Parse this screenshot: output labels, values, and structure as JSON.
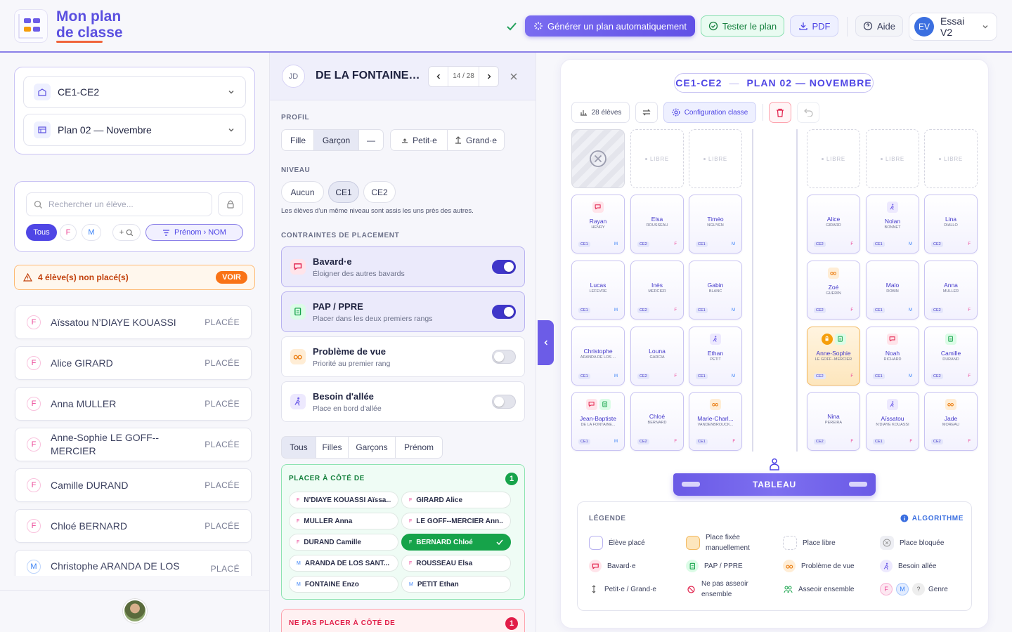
{
  "header": {
    "logo_line1": "Mon plan",
    "logo_line2": "de classe",
    "generate": "Générer un plan automatiquement",
    "test": "Tester le plan",
    "pdf": "PDF",
    "help": "Aide",
    "user_initials": "EV",
    "user_name": "Essai V2"
  },
  "sidebar": {
    "class_select": "CE1-CE2",
    "plan_select": "Plan 02 — Novembre",
    "search_placeholder": "Rechercher un élève...",
    "filters": [
      {
        "label": "Tous",
        "active": true
      },
      {
        "label": "F"
      },
      {
        "label": "M"
      },
      {
        "label": "+"
      }
    ],
    "sort": "Prénom › NOM",
    "alert": "4 élève(s) non placé(s)",
    "alert_action": "VOIR",
    "students": [
      {
        "gender": "F",
        "name": "Aïssatou N’DIAYE KOUASSI",
        "status": "PLACÉE"
      },
      {
        "gender": "F",
        "name": "Alice GIRARD",
        "status": "PLACÉE"
      },
      {
        "gender": "F",
        "name": "Anna MULLER",
        "status": "PLACÉE"
      },
      {
        "gender": "F",
        "name": "Anne-Sophie LE GOFF--MERCIER",
        "status": "PLACÉE"
      },
      {
        "gender": "F",
        "name": "Camille DURAND",
        "status": "PLACÉE"
      },
      {
        "gender": "F",
        "name": "Chloé BERNARD",
        "status": "PLACÉE"
      },
      {
        "gender": "M",
        "name": "Christophe ARANDA DE LOS SANTOS",
        "status": "PLACÉ"
      }
    ]
  },
  "panel": {
    "initials": "JD",
    "name": "DE LA FONTAINE-BI",
    "position": "14 / 28",
    "profile_label": "PROFIL",
    "gender_options": [
      {
        "label": "Fille"
      },
      {
        "label": "Garçon",
        "active": true
      },
      {
        "label": "—"
      }
    ],
    "size_options": [
      {
        "label": "Petit·e"
      },
      {
        "label": "Grand·e"
      }
    ],
    "level_label": "NIVEAU",
    "levels": [
      {
        "label": "Aucun"
      },
      {
        "label": "CE1",
        "active": true
      },
      {
        "label": "CE2"
      }
    ],
    "level_note": "Les élèves d'un même niveau sont assis les uns près des autres.",
    "constraints_label": "CONTRAINTES DE PLACEMENT",
    "constraints": [
      {
        "icon": "bavard",
        "title": "Bavard·e",
        "desc": "Éloigner des autres bavards",
        "on": true
      },
      {
        "icon": "pap",
        "title": "PAP / PPRE",
        "desc": "Placer dans les deux premiers rangs",
        "on": true
      },
      {
        "icon": "vue",
        "title": "Problème de vue",
        "desc": "Priorité au premier rang",
        "on": false
      },
      {
        "icon": "allee",
        "title": "Besoin d'allée",
        "desc": "Place en bord d'allée",
        "on": false
      }
    ],
    "tabs": [
      {
        "label": "Tous",
        "active": true
      },
      {
        "label": "Filles"
      },
      {
        "label": "Garçons"
      },
      {
        "label": "Prénom"
      }
    ],
    "near_label": "PLACER À CÔTÉ DE",
    "near_count": 1,
    "near": [
      {
        "gender": "F",
        "name": "N’DIAYE KOUASSI Aïssa..."
      },
      {
        "gender": "F",
        "name": "GIRARD Alice"
      },
      {
        "gender": "F",
        "name": "MULLER Anna"
      },
      {
        "gender": "F",
        "name": "LE GOFF--MERCIER Ann..."
      },
      {
        "gender": "F",
        "name": "DURAND Camille"
      },
      {
        "gender": "F",
        "name": "BERNARD Chloé",
        "selected": true
      },
      {
        "gender": "M",
        "name": "ARANDA DE LOS SANT..."
      },
      {
        "gender": "F",
        "name": "ROUSSEAU Elsa"
      },
      {
        "gender": "M",
        "name": "FONTAINE Enzo"
      },
      {
        "gender": "M",
        "name": "PETIT Ethan"
      }
    ],
    "not_near_label": "NE PAS PLACER À CÔTÉ DE",
    "not_near_count": 1
  },
  "classroom": {
    "title": "CE1-CE2",
    "separator": "—",
    "subtitle": "PLAN 02 — NOVEMBRE",
    "count": "28 élèves",
    "config": "Configuration classe",
    "free_label": "LIBRE",
    "board": "TABLEAU",
    "left": [
      [
        {
          "state": "blocked"
        },
        {
          "state": "free"
        },
        {
          "state": "free"
        }
      ],
      [
        {
          "first": "Rayan",
          "last": "HENRY",
          "level": "CE1",
          "gender": "M",
          "icons": [
            "bavard"
          ]
        },
        {
          "first": "Elsa",
          "last": "ROUSSEAU",
          "level": "CE2",
          "gender": "F"
        },
        {
          "first": "Timéo",
          "last": "NGUYEN",
          "level": "CE1",
          "gender": "M"
        }
      ],
      [
        {
          "first": "Lucas",
          "last": "LEFEVRE",
          "level": "CE1",
          "gender": "M"
        },
        {
          "first": "Inès",
          "last": "MERCIER",
          "level": "CE2",
          "gender": "F"
        },
        {
          "first": "Gabin",
          "last": "BLANC",
          "level": "CE1",
          "gender": "M"
        }
      ],
      [
        {
          "first": "Christophe",
          "last": "ARANDA DE LOS ...",
          "level": "CE1",
          "gender": "M"
        },
        {
          "first": "Louna",
          "last": "GARCIA",
          "level": "CE2",
          "gender": "F"
        },
        {
          "first": "Ethan",
          "last": "PETIT",
          "level": "CE1",
          "gender": "M",
          "icons": [
            "allee"
          ]
        }
      ],
      [
        {
          "first": "Jean-Baptiste",
          "last": "DE LA FONTAINE...",
          "level": "CE1",
          "gender": "M",
          "icons": [
            "bavard",
            "pap"
          ]
        },
        {
          "first": "Chloé",
          "last": "BERNARD",
          "level": "CE2",
          "gender": "F"
        },
        {
          "first": "Marie-Charl...",
          "last": "VANDENBROUCK...",
          "level": "CE1",
          "gender": "F",
          "icons": [
            "vue"
          ]
        }
      ]
    ],
    "right": [
      [
        {
          "state": "free"
        },
        {
          "state": "free"
        },
        {
          "state": "free"
        }
      ],
      [
        {
          "first": "Alice",
          "last": "GIRARD",
          "level": "CE2",
          "gender": "F"
        },
        {
          "first": "Nolan",
          "last": "BONNET",
          "level": "CE1",
          "gender": "M",
          "icons": [
            "allee"
          ]
        },
        {
          "first": "Lina",
          "last": "DIALLO",
          "level": "CE2",
          "gender": "F"
        }
      ],
      [
        {
          "first": "Zoé",
          "last": "GUERIN",
          "level": "CE2",
          "gender": "F",
          "icons": [
            "vue"
          ]
        },
        {
          "first": "Malo",
          "last": "ROBIN",
          "level": "CE1",
          "gender": "M"
        },
        {
          "first": "Anna",
          "last": "MULLER",
          "level": "CE2",
          "gender": "F"
        }
      ],
      [
        {
          "first": "Anne-Sophie",
          "last": "LE GOFF--MERCIER",
          "level": "CE2",
          "gender": "F",
          "icons": [
            "lock",
            "pap"
          ],
          "fixed": true
        },
        {
          "first": "Noah",
          "last": "RICHARD",
          "level": "CE1",
          "gender": "M",
          "icons": [
            "bavard"
          ]
        },
        {
          "first": "Camille",
          "last": "DURAND",
          "level": "CE2",
          "gender": "F",
          "icons": [
            "pap"
          ]
        }
      ],
      [
        {
          "first": "Nina",
          "last": "PEREIRA",
          "level": "CE2",
          "gender": "F"
        },
        {
          "first": "Aïssatou",
          "last": "N’DIAYE KOUASSI",
          "level": "CE1",
          "gender": "F",
          "icons": [
            "allee"
          ]
        },
        {
          "first": "Jade",
          "last": "MOREAU",
          "level": "CE2",
          "gender": "F",
          "icons": [
            "vue"
          ]
        }
      ]
    ]
  },
  "legend": {
    "title": "LÉGENDE",
    "algorithm": "ALGORITHME",
    "items": [
      {
        "icon": "placed",
        "label": "Élève placé"
      },
      {
        "icon": "fixed",
        "label": "Place fixée manuellement"
      },
      {
        "icon": "free",
        "label": "Place libre"
      },
      {
        "icon": "blocked",
        "label": "Place bloquée"
      },
      {
        "icon": "bavard",
        "label": "Bavard·e"
      },
      {
        "icon": "pap",
        "label": "PAP / PPRE"
      },
      {
        "icon": "vue",
        "label": "Problème de vue"
      },
      {
        "icon": "allee",
        "label": "Besoin allée"
      },
      {
        "icon": "size",
        "label": "Petit·e / Grand·e"
      },
      {
        "icon": "apart",
        "label": "Ne pas asseoir ensemble"
      },
      {
        "icon": "together",
        "label": "Asseoir ensemble"
      },
      {
        "icon": "gender",
        "label": "Genre",
        "symbols": [
          "F",
          "M",
          "?"
        ]
      }
    ]
  }
}
